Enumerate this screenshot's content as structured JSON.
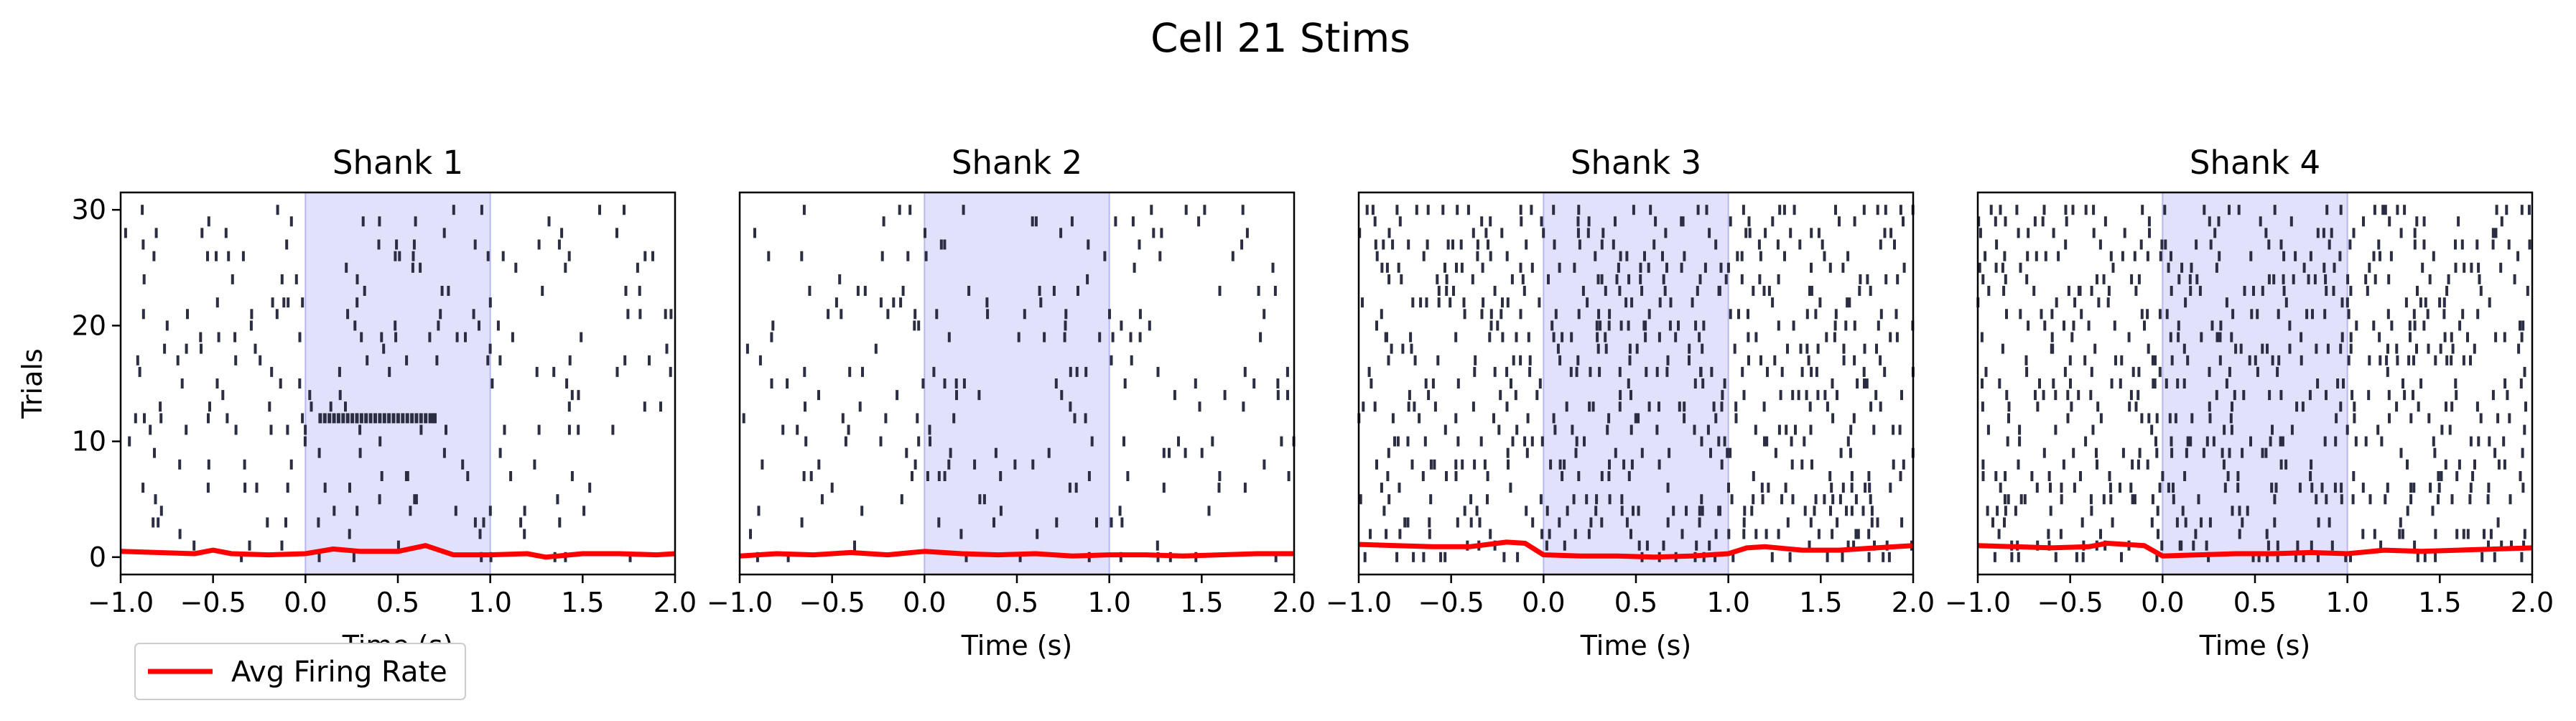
{
  "figure": {
    "title": "Cell 21 Stims"
  },
  "legend": {
    "label": "Avg Firing Rate",
    "color": "#ff0000",
    "placement": "lower-left"
  },
  "colors": {
    "spike": "#2b2d42",
    "stim_shade": "#c8c8f8",
    "rate": "#ff0000"
  },
  "chart_data": [
    {
      "type": "raster",
      "title": "Shank 1",
      "xlabel": "Time (s)",
      "ylabel": "Trials",
      "xlim": [
        -1.0,
        2.0
      ],
      "ylim": [
        -1.5,
        31.5
      ],
      "xticks": [
        "−1.0",
        "−0.5",
        "0.0",
        "0.5",
        "1.0",
        "1.5",
        "2.0"
      ],
      "yticks": [
        "0",
        "10",
        "20",
        "30"
      ],
      "stim_window": [
        0.0,
        1.0
      ],
      "spike_density": 0.22,
      "burst": {
        "trial": 12,
        "t_start": 0.08,
        "t_end": 0.7
      },
      "rate": {
        "t": [
          -1.0,
          -0.8,
          -0.6,
          -0.5,
          -0.4,
          -0.2,
          0.0,
          0.15,
          0.3,
          0.5,
          0.65,
          0.8,
          1.0,
          1.2,
          1.3,
          1.5,
          1.7,
          1.9,
          2.0
        ],
        "values": [
          0.5,
          0.4,
          0.3,
          0.6,
          0.3,
          0.2,
          0.3,
          0.7,
          0.5,
          0.5,
          1.0,
          0.2,
          0.2,
          0.3,
          0.0,
          0.3,
          0.3,
          0.2,
          0.3
        ]
      }
    },
    {
      "type": "raster",
      "title": "Shank 2",
      "xlabel": "Time (s)",
      "ylabel": "",
      "xlim": [
        -1.0,
        2.0
      ],
      "ylim": [
        -1.5,
        31.5
      ],
      "xticks": [
        "−1.0",
        "−0.5",
        "0.0",
        "0.5",
        "1.0",
        "1.5",
        "2.0"
      ],
      "yticks": [],
      "stim_window": [
        0.0,
        1.0
      ],
      "spike_density": 0.2,
      "rate": {
        "t": [
          -1.0,
          -0.8,
          -0.6,
          -0.4,
          -0.2,
          0.0,
          0.2,
          0.4,
          0.6,
          0.8,
          1.0,
          1.2,
          1.4,
          1.6,
          1.8,
          2.0
        ],
        "values": [
          0.1,
          0.3,
          0.2,
          0.4,
          0.2,
          0.5,
          0.3,
          0.2,
          0.3,
          0.1,
          0.2,
          0.2,
          0.1,
          0.2,
          0.3,
          0.3
        ]
      }
    },
    {
      "type": "raster",
      "title": "Shank 3",
      "xlabel": "Time (s)",
      "ylabel": "",
      "xlim": [
        -1.0,
        2.0
      ],
      "ylim": [
        -1.5,
        31.5
      ],
      "xticks": [
        "−1.0",
        "−0.5",
        "0.0",
        "0.5",
        "1.0",
        "1.5",
        "2.0"
      ],
      "yticks": [],
      "stim_window": [
        0.0,
        1.0
      ],
      "spike_density": 0.62,
      "rate": {
        "t": [
          -1.0,
          -0.8,
          -0.6,
          -0.4,
          -0.2,
          -0.1,
          0.0,
          0.2,
          0.4,
          0.6,
          0.8,
          1.0,
          1.1,
          1.2,
          1.4,
          1.6,
          1.8,
          2.0
        ],
        "values": [
          1.1,
          1.0,
          0.9,
          0.9,
          1.3,
          1.2,
          0.2,
          0.1,
          0.1,
          0.0,
          0.1,
          0.3,
          0.8,
          0.9,
          0.6,
          0.6,
          0.8,
          1.0
        ]
      }
    },
    {
      "type": "raster",
      "title": "Shank 4",
      "xlabel": "Time (s)",
      "ylabel": "",
      "xlim": [
        -1.0,
        2.0
      ],
      "ylim": [
        -1.5,
        31.5
      ],
      "xticks": [
        "−1.0",
        "−0.5",
        "0.0",
        "0.5",
        "1.0",
        "1.5",
        "2.0"
      ],
      "yticks": [],
      "stim_window": [
        0.0,
        1.0
      ],
      "spike_density": 0.62,
      "rate": {
        "t": [
          -1.0,
          -0.8,
          -0.6,
          -0.4,
          -0.3,
          -0.1,
          0.0,
          0.2,
          0.4,
          0.6,
          0.8,
          1.0,
          1.2,
          1.4,
          1.6,
          1.8,
          2.0
        ],
        "values": [
          1.0,
          0.9,
          0.8,
          0.9,
          1.2,
          1.0,
          0.1,
          0.2,
          0.3,
          0.3,
          0.4,
          0.3,
          0.6,
          0.5,
          0.6,
          0.7,
          0.8
        ]
      }
    }
  ]
}
